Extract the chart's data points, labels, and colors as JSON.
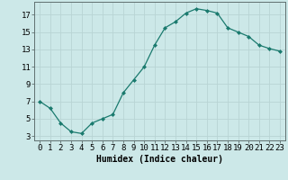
{
  "x": [
    0,
    1,
    2,
    3,
    4,
    5,
    6,
    7,
    8,
    9,
    10,
    11,
    12,
    13,
    14,
    15,
    16,
    17,
    18,
    19,
    20,
    21,
    22,
    23
  ],
  "y": [
    7.0,
    6.2,
    4.5,
    3.5,
    3.3,
    4.5,
    5.0,
    5.5,
    8.0,
    9.5,
    11.0,
    13.5,
    15.5,
    16.2,
    17.2,
    17.7,
    17.5,
    17.2,
    15.5,
    15.0,
    14.5,
    13.5,
    13.1,
    12.8
  ],
  "line_color": "#1a7a6e",
  "marker": "D",
  "marker_size": 2,
  "bg_color": "#cce8e8",
  "grid_color": "#b8d4d4",
  "xlabel": "Humidex (Indice chaleur)",
  "xlim": [
    -0.5,
    23.5
  ],
  "ylim": [
    2.5,
    18.5
  ],
  "yticks": [
    3,
    5,
    7,
    9,
    11,
    13,
    15,
    17
  ],
  "xlabel_fontsize": 7,
  "tick_fontsize": 6.5
}
